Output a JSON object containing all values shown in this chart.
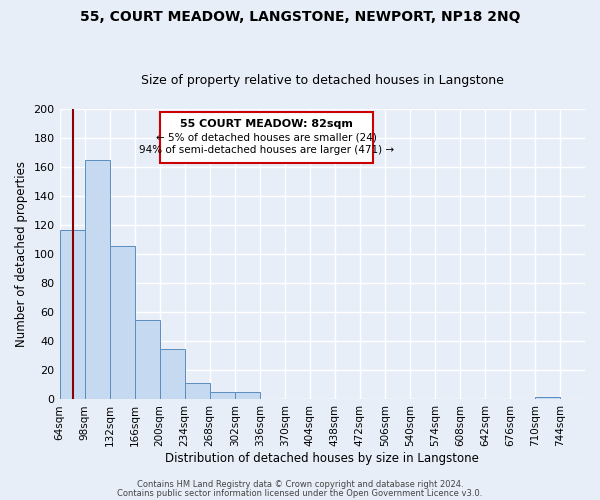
{
  "title": "55, COURT MEADOW, LANGSTONE, NEWPORT, NP18 2NQ",
  "subtitle": "Size of property relative to detached houses in Langstone",
  "xlabel": "Distribution of detached houses by size in Langstone",
  "ylabel": "Number of detached properties",
  "bar_values": [
    117,
    165,
    106,
    55,
    35,
    11,
    5,
    5,
    0,
    0,
    0,
    0,
    0,
    0,
    0,
    0,
    0,
    0,
    0,
    2,
    0
  ],
  "bar_labels": [
    "64sqm",
    "98sqm",
    "132sqm",
    "166sqm",
    "200sqm",
    "234sqm",
    "268sqm",
    "302sqm",
    "336sqm",
    "370sqm",
    "404sqm",
    "438sqm",
    "472sqm",
    "506sqm",
    "540sqm",
    "574sqm",
    "608sqm",
    "642sqm",
    "676sqm",
    "710sqm",
    "744sqm"
  ],
  "bin_edges": [
    64,
    98,
    132,
    166,
    200,
    234,
    268,
    302,
    336,
    370,
    404,
    438,
    472,
    506,
    540,
    574,
    608,
    642,
    676,
    710,
    744
  ],
  "bin_width": 34,
  "bar_color": "#c5d9f0",
  "bar_edge_color": "#5a8dbf",
  "vline_x": 82,
  "vline_color": "#8B0000",
  "ylim": [
    0,
    200
  ],
  "yticks": [
    0,
    20,
    40,
    60,
    80,
    100,
    120,
    140,
    160,
    180,
    200
  ],
  "annotation_title": "55 COURT MEADOW: 82sqm",
  "annotation_line1": "← 5% of detached houses are smaller (24)",
  "annotation_line2": "94% of semi-detached houses are larger (471) →",
  "annotation_box_color": "#ffffff",
  "annotation_border_color": "#cc0000",
  "footer1": "Contains HM Land Registry data © Crown copyright and database right 2024.",
  "footer2": "Contains public sector information licensed under the Open Government Licence v3.0.",
  "bg_color": "#e8eef8",
  "plot_bg_color": "#e8eef8",
  "grid_color": "#ffffff",
  "title_fontsize": 10,
  "subtitle_fontsize": 9
}
